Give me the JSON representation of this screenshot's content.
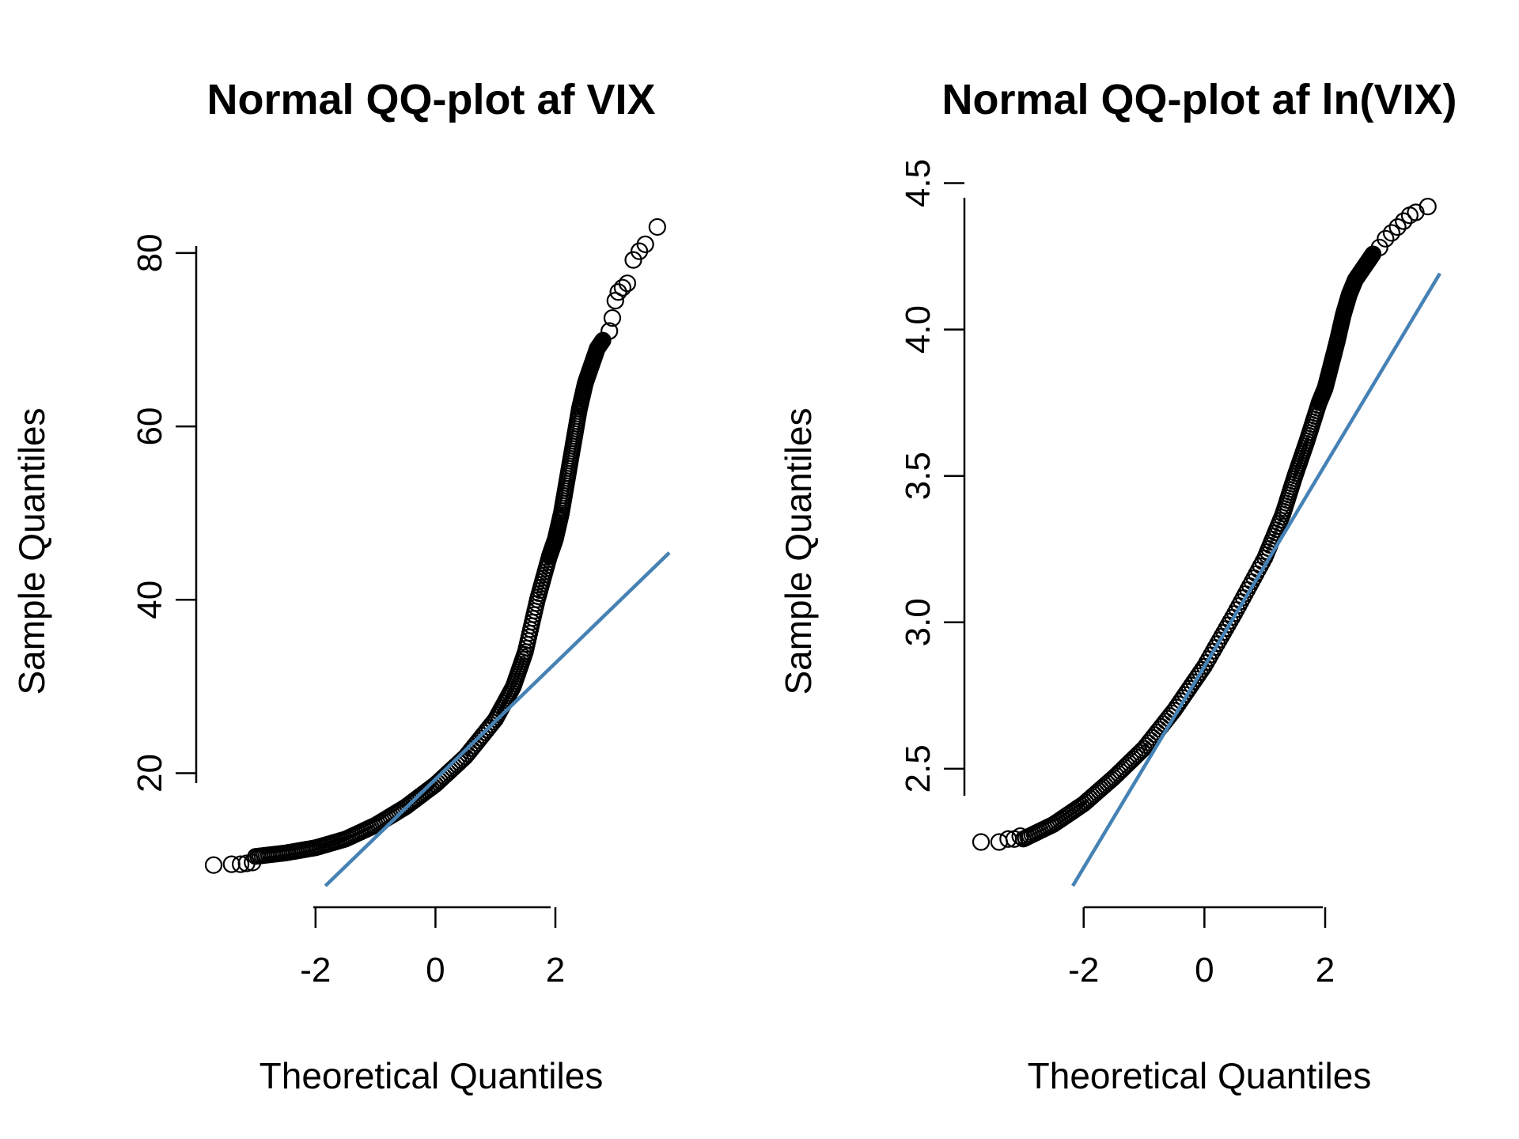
{
  "colors": {
    "line": "#4682B4",
    "points": "#000000",
    "background": "#ffffff"
  },
  "chart_data": [
    {
      "type": "scatter",
      "title": "Normal QQ-plot af VIX",
      "xlabel": "Theoretical Quantiles",
      "ylabel": "Sample Quantiles",
      "xlim": [
        -3.7,
        3.9
      ],
      "ylim": [
        7,
        84
      ],
      "x_ticks": [
        -2,
        0,
        2
      ],
      "x_tick_labels": [
        "-2",
        "0",
        "2"
      ],
      "y_ticks": [
        20,
        40,
        60,
        80
      ],
      "y_tick_labels": [
        "20",
        "40",
        "60",
        "80"
      ],
      "grid": false,
      "reference_line": {
        "slope": 6.7,
        "intercept": 19.3
      },
      "quantile_curve": [
        [
          -3.0,
          10.4
        ],
        [
          -2.5,
          10.8
        ],
        [
          -2.0,
          11.4
        ],
        [
          -1.5,
          12.4
        ],
        [
          -1.0,
          14.0
        ],
        [
          -0.5,
          16.1
        ],
        [
          0.0,
          18.7
        ],
        [
          0.5,
          21.9
        ],
        [
          1.0,
          26.2
        ],
        [
          1.3,
          30.0
        ],
        [
          1.5,
          34.0
        ],
        [
          1.7,
          40.0
        ],
        [
          1.9,
          45.0
        ],
        [
          2.0,
          47.0
        ],
        [
          2.1,
          50.0
        ],
        [
          2.2,
          54.0
        ],
        [
          2.3,
          58.0
        ],
        [
          2.4,
          62.0
        ],
        [
          2.5,
          65.0
        ],
        [
          2.6,
          67.0
        ],
        [
          2.7,
          69.0
        ],
        [
          2.8,
          70.0
        ]
      ],
      "tail_points": [
        [
          -3.7,
          9.4
        ],
        [
          -3.4,
          9.5
        ],
        [
          -3.25,
          9.5
        ],
        [
          -3.15,
          9.6
        ],
        [
          -3.05,
          9.7
        ],
        [
          2.9,
          71.0
        ],
        [
          2.95,
          72.5
        ],
        [
          3.0,
          74.5
        ],
        [
          3.05,
          75.5
        ],
        [
          3.12,
          76.0
        ],
        [
          3.2,
          76.5
        ],
        [
          3.3,
          79.2
        ],
        [
          3.4,
          80.2
        ],
        [
          3.5,
          81.0
        ],
        [
          3.7,
          83.0
        ]
      ]
    },
    {
      "type": "scatter",
      "title": "Normal QQ-plot af ln(VIX)",
      "xlabel": "Theoretical Quantiles",
      "ylabel": "Sample Quantiles",
      "xlim": [
        -3.7,
        3.9
      ],
      "ylim": [
        2.1,
        4.45
      ],
      "x_ticks": [
        -2,
        0,
        2
      ],
      "x_tick_labels": [
        "-2",
        "0",
        "2"
      ],
      "y_ticks": [
        2.5,
        3.0,
        3.5,
        4.0,
        4.5
      ],
      "y_tick_labels": [
        "2.5",
        "3.0",
        "3.5",
        "4.0",
        "4.5"
      ],
      "grid": false,
      "reference_line": {
        "slope": 0.344,
        "intercept": 2.85
      },
      "quantile_curve": [
        [
          -3.0,
          2.26
        ],
        [
          -2.5,
          2.31
        ],
        [
          -2.0,
          2.38
        ],
        [
          -1.5,
          2.47
        ],
        [
          -1.0,
          2.57
        ],
        [
          -0.5,
          2.7
        ],
        [
          0.0,
          2.85
        ],
        [
          0.5,
          3.03
        ],
        [
          1.0,
          3.22
        ],
        [
          1.3,
          3.37
        ],
        [
          1.5,
          3.5
        ],
        [
          1.7,
          3.62
        ],
        [
          1.9,
          3.75
        ],
        [
          2.0,
          3.8
        ],
        [
          2.1,
          3.88
        ],
        [
          2.2,
          3.96
        ],
        [
          2.3,
          4.05
        ],
        [
          2.4,
          4.12
        ],
        [
          2.5,
          4.17
        ],
        [
          2.6,
          4.2
        ],
        [
          2.7,
          4.23
        ],
        [
          2.8,
          4.26
        ]
      ],
      "tail_points": [
        [
          -3.7,
          2.25
        ],
        [
          -3.4,
          2.25
        ],
        [
          -3.25,
          2.26
        ],
        [
          -3.15,
          2.26
        ],
        [
          -3.05,
          2.27
        ],
        [
          2.9,
          4.28
        ],
        [
          3.0,
          4.31
        ],
        [
          3.1,
          4.33
        ],
        [
          3.2,
          4.35
        ],
        [
          3.3,
          4.37
        ],
        [
          3.4,
          4.39
        ],
        [
          3.5,
          4.4
        ],
        [
          3.7,
          4.42
        ]
      ]
    }
  ]
}
